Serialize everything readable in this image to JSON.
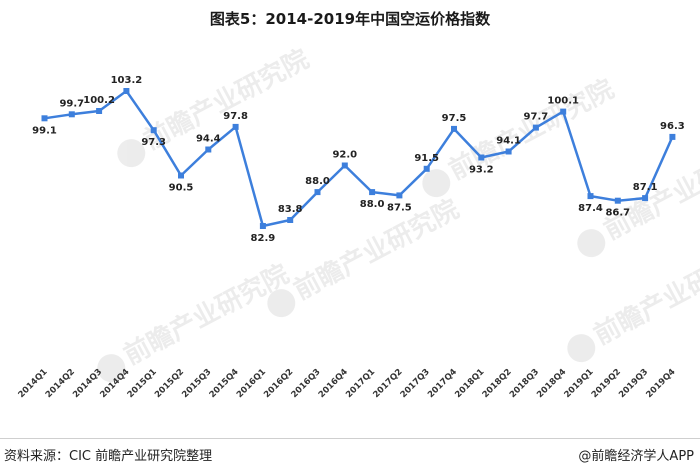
{
  "title": "图表5：2014-2019年中国空运价格指数",
  "source_text": "资料来源：CIC  前瞻产业研究院整理",
  "brand_text": "@前瞻经济学人APP",
  "watermark_text": "前瞻产业研究院",
  "chart_data": {
    "type": "line",
    "title": "图表5：2014-2019年中国空运价格指数",
    "xlabel": "",
    "ylabel": "",
    "ylim": [
      75,
      108
    ],
    "grid": false,
    "legend": "none",
    "categories": [
      "2014Q1",
      "2014Q2",
      "2014Q3",
      "2014Q4",
      "2015Q1",
      "2015Q2",
      "2015Q3",
      "2015Q4",
      "2016Q1",
      "2016Q2",
      "2016Q3",
      "2016Q4",
      "2017Q1",
      "2017Q2",
      "2017Q3",
      "2017Q4",
      "2018Q1",
      "2018Q2",
      "2018Q3",
      "2018Q4",
      "2019Q1",
      "2019Q2",
      "2019Q3",
      "2019Q4"
    ],
    "series": [
      {
        "values": [
          99.1,
          99.7,
          100.2,
          103.2,
          97.3,
          90.5,
          94.4,
          97.8,
          82.9,
          83.8,
          88.0,
          92.0,
          88.0,
          87.5,
          91.5,
          97.5,
          93.2,
          94.1,
          97.7,
          100.1,
          87.4,
          86.7,
          87.1,
          96.3
        ],
        "color": "#3d7fdc"
      }
    ],
    "data_labels": [
      "99.1",
      "99.7",
      "100.2",
      "103.2",
      "97.3",
      "90.5",
      "94.4",
      "97.8",
      "82.9",
      "83.8",
      "88.0",
      "92.0",
      "88.0",
      "87.5",
      "91.5",
      "97.5",
      "93.2",
      "94.1",
      "97.7",
      "100.1",
      "87.4",
      "86.7",
      "87.1",
      "96.3"
    ]
  }
}
